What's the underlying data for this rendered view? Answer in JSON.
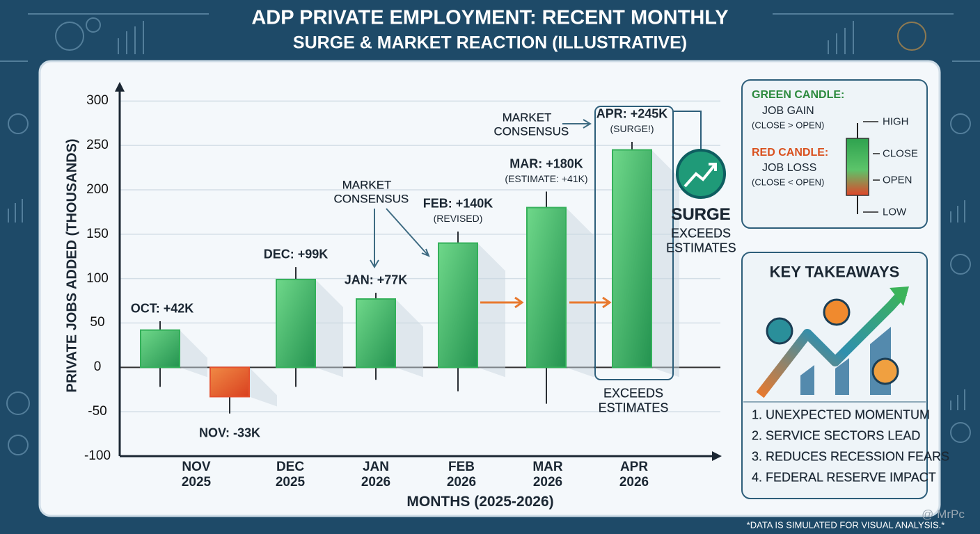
{
  "title": "ADP PRIVATE EMPLOYMENT: RECENT MONTHLY",
  "subtitle": "SURGE & MARKET REACTION (ILLUSTRATIVE)",
  "chart_data": {
    "type": "candlestick",
    "y_label": "PRIVATE JOBS ADDED (THOUSANDS)",
    "x_label": "MONTHS (2025-2026)",
    "categories": [
      null,
      "NOV 2025",
      "DEC 2025",
      "JAN 2026",
      "FEB 2026",
      "MAR 2026",
      "APR 2026"
    ],
    "open": [
      0,
      0,
      0,
      0,
      0,
      0,
      0
    ],
    "close": [
      42,
      -33,
      99,
      77,
      140,
      180,
      245
    ],
    "high": [
      52,
      0,
      113,
      84,
      153,
      198,
      254
    ],
    "low": [
      -22,
      -52,
      -22,
      -14,
      -27,
      -41,
      0
    ],
    "value_labels": [
      "OCT: +42K",
      "NOV: -33K",
      "DEC: +99K",
      "JAN: +77K",
      "FEB: +140K",
      "MAR: +180K",
      "APR: +245K"
    ],
    "notes": [
      null,
      null,
      null,
      null,
      "(REVISED)",
      "(ESTIMATE: +41K)",
      "(SURGE!)"
    ],
    "up_color": "#34b05a",
    "down_color": "#e4512d",
    "ylim": [
      -100,
      320
    ],
    "yticks": [
      -100,
      -50,
      0,
      50,
      100,
      150,
      200,
      250,
      300
    ],
    "grid": true,
    "annotations": [
      "MARKET CONSENSUS",
      "MARKET CONSENSUS",
      "SURGE",
      "EXCEEDS ESTIMATES",
      "EXCEEDS ESTIMATES"
    ]
  },
  "legend": {
    "green_title": "GREEN CANDLE:",
    "green_text": "JOB GAIN",
    "green_rule": "(CLOSE > OPEN)",
    "red_title": "RED CANDLE:",
    "red_text": "JOB LOSS",
    "red_rule": "(CLOSE < OPEN)",
    "parts": [
      "HIGH",
      "CLOSE",
      "OPEN",
      "LOW"
    ]
  },
  "takeaways": {
    "title": "KEY TAKEAWAYS",
    "items": [
      "1. UNEXPECTED MOMENTUM",
      "2. SERVICE SECTORS LEAD",
      "3. REDUCES RECESSION FEARS",
      "4. FEDERAL RESERVE IMPACT"
    ]
  },
  "footnote": "*DATA IS SIMULATED FOR VISUAL ANALYSIS.*",
  "watermark": "@ MrPc"
}
